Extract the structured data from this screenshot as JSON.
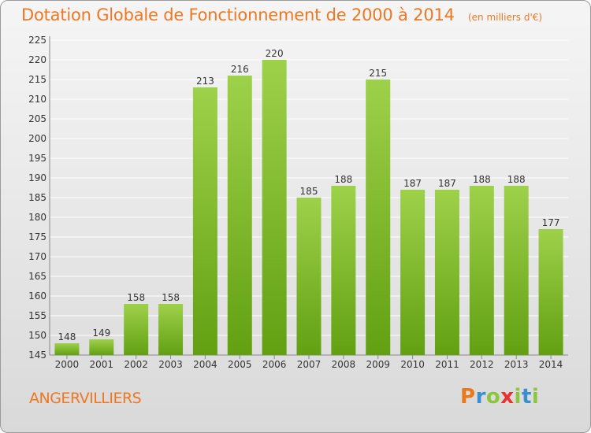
{
  "header": {
    "title": "Dotation Globale de Fonctionnement de 2000 à 2014",
    "unit": "(en milliers d'€)"
  },
  "footer": {
    "commune": "ANGERVILLIERS",
    "logo_text": "Proxiti",
    "logo_colors": [
      "#e87a1d",
      "#3a8fd1",
      "#8cc63f",
      "#e8322e",
      "#8cc63f",
      "#3a8fd1",
      "#8cc63f"
    ]
  },
  "colors": {
    "title": "#ee7722",
    "bar_light": "#9ed14a",
    "bar_dark": "#62a012",
    "grid": "#ffffff",
    "text": "#333333"
  },
  "chart_data": {
    "type": "bar",
    "title": "Dotation Globale de Fonctionnement de 2000 à 2014",
    "subtitle": "(en milliers d'€)",
    "categories": [
      "2000",
      "2001",
      "2002",
      "2003",
      "2004",
      "2005",
      "2006",
      "2007",
      "2008",
      "2009",
      "2010",
      "2011",
      "2012",
      "2013",
      "2014"
    ],
    "values": [
      148,
      149,
      158,
      158,
      213,
      216,
      220,
      185,
      188,
      215,
      187,
      187,
      188,
      188,
      177
    ],
    "yticks": [
      145,
      150,
      155,
      160,
      165,
      170,
      175,
      180,
      185,
      190,
      195,
      200,
      205,
      210,
      215,
      220,
      225
    ],
    "ylim": [
      145,
      225
    ],
    "grid": true,
    "legend": "none",
    "show_values": true
  }
}
